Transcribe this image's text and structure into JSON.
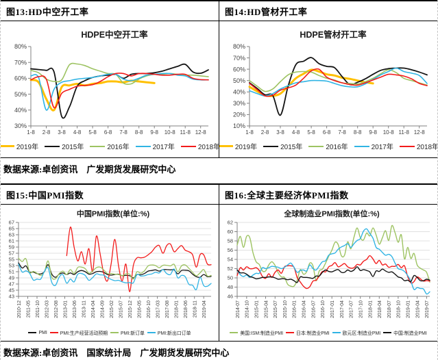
{
  "figures": [
    {
      "header": "图13:HD中空开工率"
    },
    {
      "header": "图14:HD管材开工率"
    },
    {
      "header": "图15:中国PMI指数"
    },
    {
      "header": "图16:全球主要经济体PMI指数"
    }
  ],
  "captions": {
    "row1": "数据来源:卓创资讯　广发期货发展研究中心",
    "row2": "数据来源:卓创资讯　国家统计局　广发期货发展研究中心"
  },
  "colors": {
    "y2019": "#FFC000",
    "y2015": "#141414",
    "y2016": "#9DC362",
    "y2017": "#30B4E4",
    "y2018": "#F21B1B",
    "axis": "#808080",
    "grid": "#e0e0e0",
    "tick_label": "#3f3f3f"
  },
  "chart_data": [
    {
      "type": "line",
      "title": "HDPE中空开工率",
      "ylim": [
        30,
        80
      ],
      "ytick_step": 10,
      "percent": true,
      "grid": false,
      "rotate_x": false,
      "tick_every": 2,
      "legend_position": "bottom",
      "x_labels": [
        "1-8",
        "2-8",
        "3-8",
        "4-8",
        "5-8",
        "6-8",
        "7-8",
        "8-8",
        "9-8",
        "10-8",
        "11-8",
        "12-8"
      ],
      "series": [
        {
          "name": "2019年",
          "color": "#FFC000",
          "width": 3,
          "values": [
            59,
            57.5,
            47,
            40,
            54.5,
            55.5,
            56.5,
            55.5,
            56.5,
            57,
            58,
            58,
            57.5,
            58.5,
            58,
            57.5,
            57,
            null,
            null,
            null,
            null,
            null,
            null,
            null
          ]
        },
        {
          "name": "2015年",
          "color": "#141414",
          "width": 1.8,
          "values": [
            66,
            65.5,
            65,
            64,
            36,
            42,
            55,
            58.5,
            60.5,
            61.5,
            62,
            62.5,
            60,
            62.5,
            63,
            63,
            63.5,
            64.5,
            66,
            67.5,
            68.8,
            64,
            63.2,
            65.3
          ]
        },
        {
          "name": "2016年",
          "color": "#9DC362",
          "width": 1.6,
          "values": [
            65,
            63.5,
            59.5,
            58,
            59,
            68.5,
            69,
            68,
            66,
            64.5,
            63,
            62.5,
            57,
            56.5,
            59.5,
            61.5,
            62.5,
            62.5,
            63,
            62.5,
            62,
            62,
            61.5,
            61
          ]
        },
        {
          "name": "2017年",
          "color": "#30B4E4",
          "width": 1.6,
          "values": [
            61.5,
            60.5,
            40,
            53,
            57.5,
            58.5,
            59.5,
            60,
            60.5,
            61.5,
            62.5,
            62.5,
            59.5,
            58.5,
            60,
            62,
            62.5,
            63,
            63,
            62,
            61.5,
            59.5,
            59,
            59
          ]
        },
        {
          "name": "2018年",
          "color": "#F21B1B",
          "width": 1.6,
          "values": [
            59,
            61,
            59.5,
            41.5,
            50.5,
            53,
            55,
            55.5,
            56,
            58,
            61,
            63,
            63,
            61.5,
            63,
            63,
            62.5,
            62,
            62,
            62.5,
            62.5,
            60,
            59.2,
            59
          ]
        }
      ]
    },
    {
      "type": "line",
      "title": "HDPE管材开工率",
      "ylim": [
        10,
        80
      ],
      "ytick_step": 10,
      "percent": true,
      "grid": false,
      "rotate_x": false,
      "tick_every": 2,
      "legend_position": "bottom",
      "x_labels": [
        "1-8",
        "2-8",
        "3-8",
        "4-8",
        "5-8",
        "6-8",
        "7-8",
        "8-8",
        "9-8",
        "10-8",
        "11-8",
        "12-8"
      ],
      "series": [
        {
          "name": "2019年",
          "color": "#FFC000",
          "width": 3,
          "values": [
            44.5,
            40.5,
            37,
            36.5,
            38.5,
            45,
            52,
            56,
            59.5,
            58,
            55.5,
            54.5,
            52.5,
            51.5,
            50,
            48.5,
            47.5,
            null,
            null,
            null,
            null,
            null,
            null,
            null
          ]
        },
        {
          "name": "2015年",
          "color": "#141414",
          "width": 1.8,
          "values": [
            48,
            43,
            37.5,
            37,
            19.5,
            45,
            64,
            67,
            70.3,
            65,
            62.5,
            61.5,
            53.5,
            46.5,
            48.5,
            51.5,
            55.5,
            59,
            60.5,
            61,
            61,
            59.5,
            57.5,
            55
          ]
        },
        {
          "name": "2016年",
          "color": "#9DC362",
          "width": 1.6,
          "values": [
            50,
            45,
            40.5,
            42.5,
            49,
            55,
            57.5,
            58,
            57.5,
            54.5,
            52,
            50.5,
            48,
            47.5,
            47,
            49,
            52,
            56,
            59.5,
            57,
            52,
            50,
            48,
            46
          ]
        },
        {
          "name": "2017年",
          "color": "#30B4E4",
          "width": 1.6,
          "values": [
            41,
            38.5,
            36.5,
            38.5,
            42.5,
            45.5,
            48,
            49,
            50,
            50,
            49.5,
            47.5,
            45.5,
            44.5,
            44.5,
            47,
            51,
            55,
            58,
            61,
            58,
            56.5,
            54.5,
            47.5
          ]
        },
        {
          "name": "2018年",
          "color": "#F21B1B",
          "width": 1.6,
          "values": [
            47.5,
            42,
            36.5,
            37,
            41.5,
            43.5,
            46,
            52,
            58.5,
            60,
            53,
            50,
            48,
            46.5,
            46,
            48,
            50.5,
            53,
            55.5,
            55,
            54,
            51.5,
            47.5,
            45.5
          ]
        }
      ]
    },
    {
      "type": "line",
      "title": "中国PMI指数(单位:%)",
      "ylim": [
        43,
        67
      ],
      "ytick_step": 2,
      "percent": false,
      "grid": true,
      "rotate_x": true,
      "tick_every": 2.5,
      "legend_position": "bottom",
      "x_labels": [
        "2010-12",
        "2011-05",
        "2011-10",
        "2012-03",
        "2012-08",
        "2013-01",
        "2013-06",
        "2013-11",
        "2014-04",
        "2014-09",
        "2015-02",
        "2015-07",
        "2015-12",
        "2016-05",
        "2016-10",
        "2017-03",
        "2017-08",
        "2018-01",
        "2018-06",
        "2018-11",
        "2019-04"
      ],
      "series": [
        {
          "name": "PMI",
          "color": "#141414",
          "width": 1.3,
          "values": [
            53.9,
            52.2,
            52.9,
            50.9,
            50.9,
            50.4,
            50.3,
            51.0,
            53.3,
            50.2,
            49.2,
            50.2,
            50.6,
            50.1,
            50.6,
            50.1,
            51.0,
            51.4,
            51.0,
            50.2,
            50.4,
            51.0,
            51.1,
            50.8,
            50.1,
            49.9,
            50.1,
            50.2,
            49.7,
            49.8,
            49.7,
            49.0,
            50.1,
            50.0,
            50.4,
            51.2,
            51.4,
            51.6,
            51.2,
            51.7,
            51.7,
            51.6,
            51.6,
            50.3,
            51.4,
            51.5,
            51.3,
            50.2,
            49.4,
            49.2,
            50.1,
            49.4,
            49.5
          ]
        },
        {
          "name": "PMI:生产经营活动预期",
          "color": "#F21B1B",
          "width": 1.3,
          "values": [
            null,
            null,
            null,
            null,
            null,
            null,
            null,
            null,
            null,
            null,
            null,
            null,
            null,
            56.2,
            65.5,
            59.0,
            54.5,
            57.5,
            53.5,
            58.5,
            51.0,
            62.5,
            57.0,
            50.5,
            48.0,
            53.5,
            61.5,
            53.0,
            48.0,
            53.5,
            44.5,
            53.0,
            55.5,
            55.5,
            55.7,
            56.5,
            57.5,
            59.0,
            59.5,
            57.0,
            59.5,
            60.0,
            57.5,
            58.5,
            59.5,
            58.0,
            57.5,
            56.5,
            52.5,
            56.5,
            56.5,
            53.5,
            53.3
          ]
        },
        {
          "name": "PMI:新订单",
          "color": "#9DC362",
          "width": 1.3,
          "values": [
            55.4,
            54.3,
            55.2,
            50.8,
            51.1,
            50.5,
            49.8,
            51.0,
            54.5,
            49.2,
            48.7,
            50.4,
            51.2,
            50.1,
            51.7,
            50.4,
            52.4,
            52.5,
            52.0,
            50.5,
            51.2,
            52.3,
            52.5,
            51.6,
            50.4,
            50.4,
            50.2,
            50.1,
            49.7,
            50.3,
            50.2,
            48.6,
            51.0,
            50.5,
            51.3,
            52.9,
            53.2,
            53.0,
            52.3,
            53.1,
            53.1,
            52.9,
            53.4,
            51.0,
            52.9,
            53.2,
            52.1,
            50.8,
            49.7,
            50.6,
            51.7,
            49.6,
            49.8
          ]
        },
        {
          "name": "PMI:新出口订单",
          "color": "#30B4E4",
          "width": 1.3,
          "values": [
            53.5,
            50.9,
            51.3,
            50.5,
            48.3,
            48.6,
            48.6,
            51.1,
            52.2,
            47.5,
            46.6,
            49.3,
            50.0,
            47.3,
            48.6,
            47.7,
            50.2,
            50.4,
            49.8,
            48.2,
            49.1,
            50.3,
            50.0,
            49.9,
            49.1,
            48.5,
            48.1,
            48.2,
            47.7,
            47.4,
            47.5,
            47.4,
            50.1,
            49.6,
            49.7,
            50.1,
            50.3,
            50.8,
            50.6,
            51.7,
            50.4,
            50.1,
            51.9,
            49.0,
            49.8,
            49.4,
            46.9,
            46.6,
            45.2,
            49.2,
            46.5,
            46.3,
            47.2
          ]
        }
      ]
    },
    {
      "type": "line",
      "title": "全球制造业PMI指数(单位:%)",
      "ylim": [
        46,
        62
      ],
      "ytick_step": 2,
      "percent": false,
      "grid": true,
      "rotate_x": true,
      "tick_every": 3,
      "legend_position": "bottom",
      "x_labels": [
        "2014-07",
        "2014-10",
        "2015-01",
        "2015-04",
        "2015-07",
        "2015-10",
        "2016-01",
        "2016-04",
        "2016-07",
        "2016-10",
        "2017-01",
        "2017-04",
        "2017-07",
        "2017-10",
        "2018-01",
        "2018-04",
        "2018-07",
        "2018-10",
        "2019-01",
        "2019-04",
        "2019-07"
      ],
      "series": [
        {
          "name": "美国:ISM:制造业PMI",
          "color": "#9DC362",
          "width": 1.4,
          "values": [
            57.1,
            59.0,
            56.6,
            59.0,
            58.7,
            55.5,
            53.5,
            52.9,
            51.5,
            51.5,
            52.8,
            53.5,
            52.7,
            51.1,
            50.2,
            50.1,
            48.6,
            48.2,
            48.2,
            49.5,
            51.8,
            50.8,
            51.3,
            53.2,
            52.6,
            49.4,
            51.5,
            51.9,
            53.2,
            54.7,
            56.0,
            57.7,
            57.2,
            54.8,
            54.9,
            57.8,
            56.3,
            58.8,
            60.8,
            58.7,
            58.2,
            59.7,
            59.1,
            60.8,
            59.3,
            57.3,
            58.7,
            60.2,
            58.1,
            61.3,
            59.8,
            57.7,
            59.3,
            54.1,
            56.6,
            54.2,
            55.3,
            52.8,
            52.1,
            51.7,
            51.2,
            49.1
          ]
        },
        {
          "name": "日本:制造业PMI",
          "color": "#F21B1B",
          "width": 1.4,
          "values": [
            50.5,
            52.2,
            51.7,
            52.4,
            52.0,
            52.0,
            52.2,
            51.6,
            50.3,
            49.9,
            50.9,
            50.1,
            51.2,
            51.7,
            51.0,
            52.4,
            52.6,
            52.6,
            52.3,
            50.1,
            49.1,
            48.2,
            47.7,
            48.1,
            49.3,
            49.5,
            50.4,
            51.4,
            51.3,
            52.4,
            52.7,
            53.3,
            52.4,
            52.7,
            53.1,
            52.4,
            52.1,
            52.2,
            52.9,
            52.8,
            53.6,
            54.0,
            54.8,
            54.1,
            53.1,
            53.8,
            52.8,
            53.0,
            52.3,
            52.5,
            52.5,
            52.9,
            52.2,
            52.6,
            50.3,
            48.9,
            49.2,
            50.2,
            49.8,
            49.3,
            49.4,
            49.3
          ]
        },
        {
          "name": "欧元区:制造业PMI",
          "color": "#30B4E4",
          "width": 1.4,
          "values": [
            51.8,
            50.7,
            50.3,
            50.6,
            50.1,
            50.6,
            51.0,
            51.0,
            52.2,
            52.0,
            52.2,
            52.5,
            52.4,
            52.3,
            52.0,
            52.3,
            52.8,
            53.2,
            52.3,
            51.2,
            51.6,
            51.7,
            51.5,
            52.8,
            52.0,
            51.7,
            52.6,
            53.5,
            53.7,
            54.9,
            55.2,
            55.4,
            56.2,
            56.7,
            57.0,
            57.4,
            56.6,
            57.4,
            58.1,
            58.5,
            60.1,
            60.6,
            59.6,
            58.6,
            56.6,
            56.2,
            55.5,
            54.9,
            55.1,
            54.6,
            53.2,
            52.0,
            51.8,
            51.4,
            50.5,
            49.3,
            47.5,
            47.9,
            47.7,
            47.6,
            46.5,
            47.0
          ]
        },
        {
          "name": "中国:制造业PMI",
          "color": "#141414",
          "width": 1.4,
          "values": [
            51.7,
            51.1,
            51.1,
            50.8,
            50.3,
            50.1,
            49.8,
            49.9,
            50.1,
            50.1,
            50.2,
            50.2,
            50.0,
            49.7,
            49.8,
            49.8,
            49.6,
            49.7,
            49.4,
            49.0,
            50.2,
            50.1,
            50.1,
            50.0,
            49.9,
            50.4,
            50.4,
            51.2,
            51.7,
            51.4,
            51.3,
            51.6,
            51.8,
            51.2,
            51.2,
            51.7,
            51.4,
            51.7,
            52.4,
            51.6,
            51.8,
            51.6,
            51.3,
            50.3,
            51.5,
            51.4,
            51.9,
            51.5,
            51.2,
            51.3,
            50.8,
            50.2,
            50.0,
            49.4,
            49.5,
            49.2,
            50.5,
            50.1,
            49.4,
            49.4,
            49.7,
            49.5
          ]
        }
      ]
    }
  ]
}
